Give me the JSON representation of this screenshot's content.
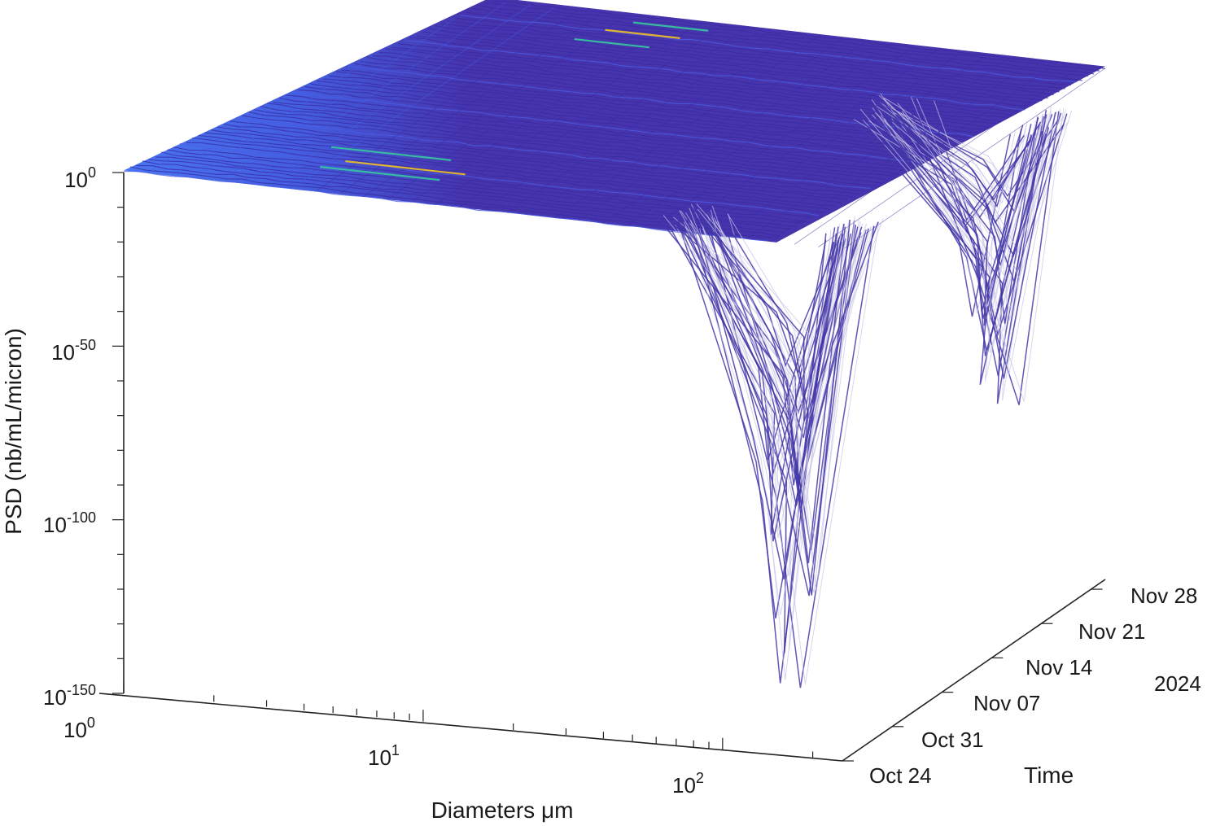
{
  "chart_data": {
    "type": "surface",
    "xlabel": "Diameters μm",
    "ylabel": "Time",
    "zlabel": "PSD (nb/mL/micron)",
    "x_scale": "log",
    "z_scale": "log",
    "x_ticks": [
      {
        "value": 1,
        "base": "10",
        "exp": "0"
      },
      {
        "value": 10,
        "base": "10",
        "exp": "1"
      },
      {
        "value": 100,
        "base": "10",
        "exp": "2"
      }
    ],
    "z_ticks": [
      {
        "value": 1,
        "base": "10",
        "exp": "0"
      },
      {
        "value": 1e-50,
        "base": "10",
        "exp": "-50"
      },
      {
        "value": 1e-100,
        "base": "10",
        "exp": "-100"
      },
      {
        "value": 1e-150,
        "base": "10",
        "exp": "-150"
      }
    ],
    "y_ticks": [
      "Oct 24",
      "Oct 31",
      "Nov 07",
      "Nov 14",
      "Nov 21",
      "Nov 28"
    ],
    "y_year": "2024",
    "xlim": [
      1,
      250
    ],
    "ylim": [
      "2024-10-24",
      "2024-11-30"
    ],
    "zlim_log10": [
      -150,
      5
    ],
    "colormap": "parula",
    "colors": {
      "surface_base": "#3c2aa8",
      "surface_light": "#3f6ff0",
      "surface_highlight": "#37c9a0",
      "surface_peak": "#f0c020",
      "axis": "#222222"
    },
    "features": [
      {
        "description": "nearly flat PSD plateau near 10^0 for diameters below ~100 μm"
      },
      {
        "diameter_um": 150,
        "date": "2024-10-27",
        "min_log10_psd": -140
      },
      {
        "diameter_um": 200,
        "date": "2024-11-18",
        "min_log10_psd": -90
      }
    ]
  }
}
